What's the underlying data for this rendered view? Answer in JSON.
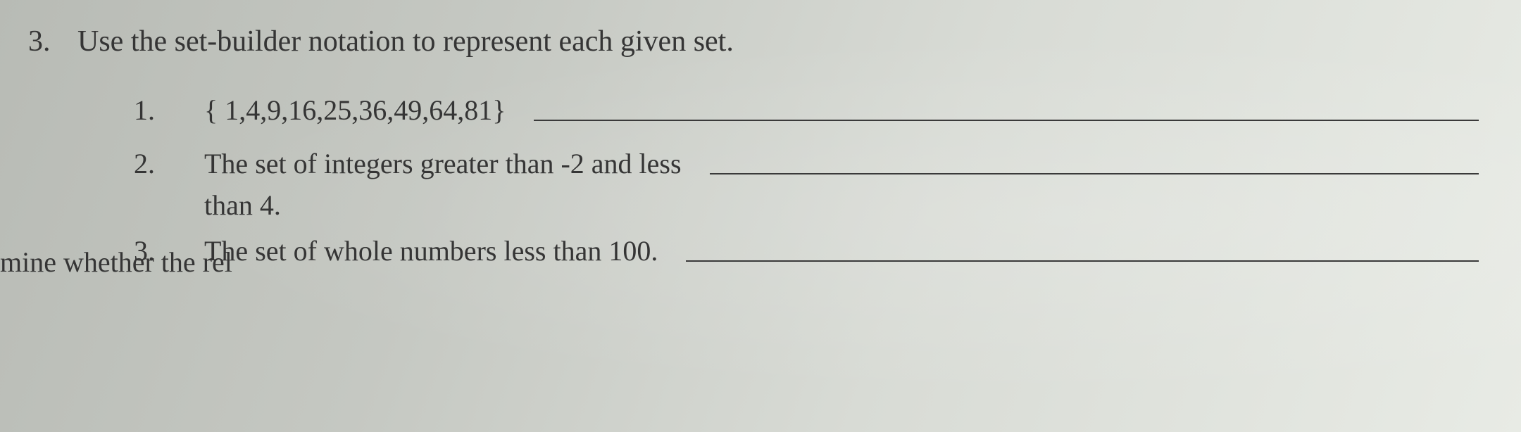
{
  "question": {
    "number": "3.",
    "text": "Use the set-builder notation to represent each given set."
  },
  "items": [
    {
      "number": "1.",
      "text": "{ 1,4,9,16,25,36,49,64,81}"
    },
    {
      "number": "2.",
      "line1": "The set of integers greater than -2 and less",
      "line2": "than 4."
    },
    {
      "number": "3.",
      "text": "The set of whole numbers less than 100."
    }
  ],
  "cutoff_text": "mine whether the rel",
  "styling": {
    "background_gradient_start": "#b8bbb5",
    "background_gradient_end": "#e8ebe5",
    "text_color": "#353535",
    "underline_color": "#3a3a3a",
    "main_fontsize": 42,
    "sub_fontsize": 40,
    "font_family": "Georgia, Times New Roman, serif"
  }
}
